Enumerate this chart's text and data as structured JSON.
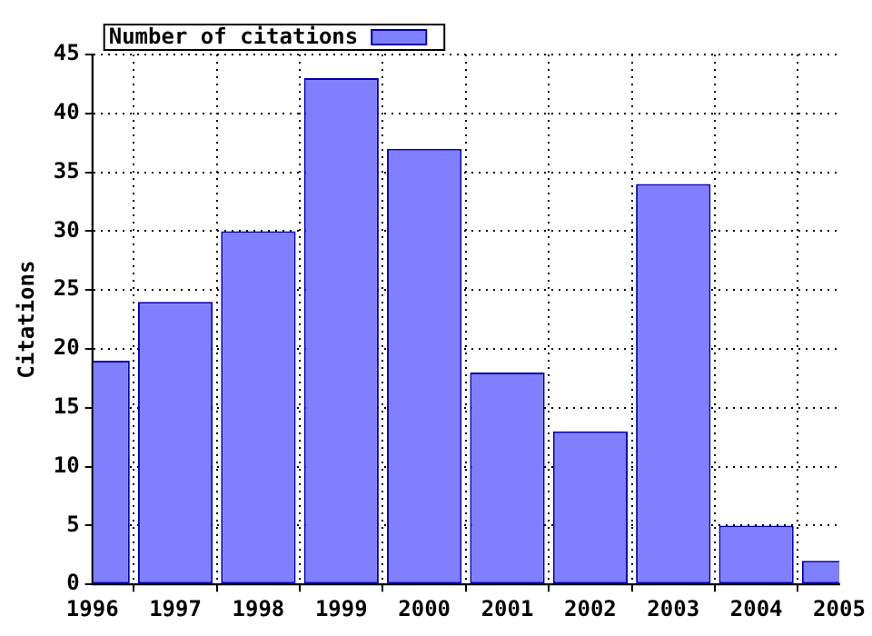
{
  "chart_data": {
    "type": "bar",
    "ylabel": "Citations",
    "x": [
      1996,
      1997,
      1998,
      1999,
      2000,
      2001,
      2002,
      2003,
      2004,
      2005
    ],
    "series": [
      {
        "name": "Number of citations",
        "color": "#8080ff",
        "values": [
          19,
          24,
          30,
          43,
          37,
          18,
          13,
          34,
          5,
          2
        ]
      }
    ],
    "xlim": [
      1996,
      2005
    ],
    "xticks": [
      1996,
      1997,
      1998,
      1999,
      2000,
      2001,
      2002,
      2003,
      2004,
      2005
    ],
    "ylim": [
      0,
      45
    ],
    "yticks": [
      0,
      5,
      10,
      15,
      20,
      25,
      30,
      35,
      40,
      45
    ],
    "grid": true,
    "legend": "top left"
  }
}
